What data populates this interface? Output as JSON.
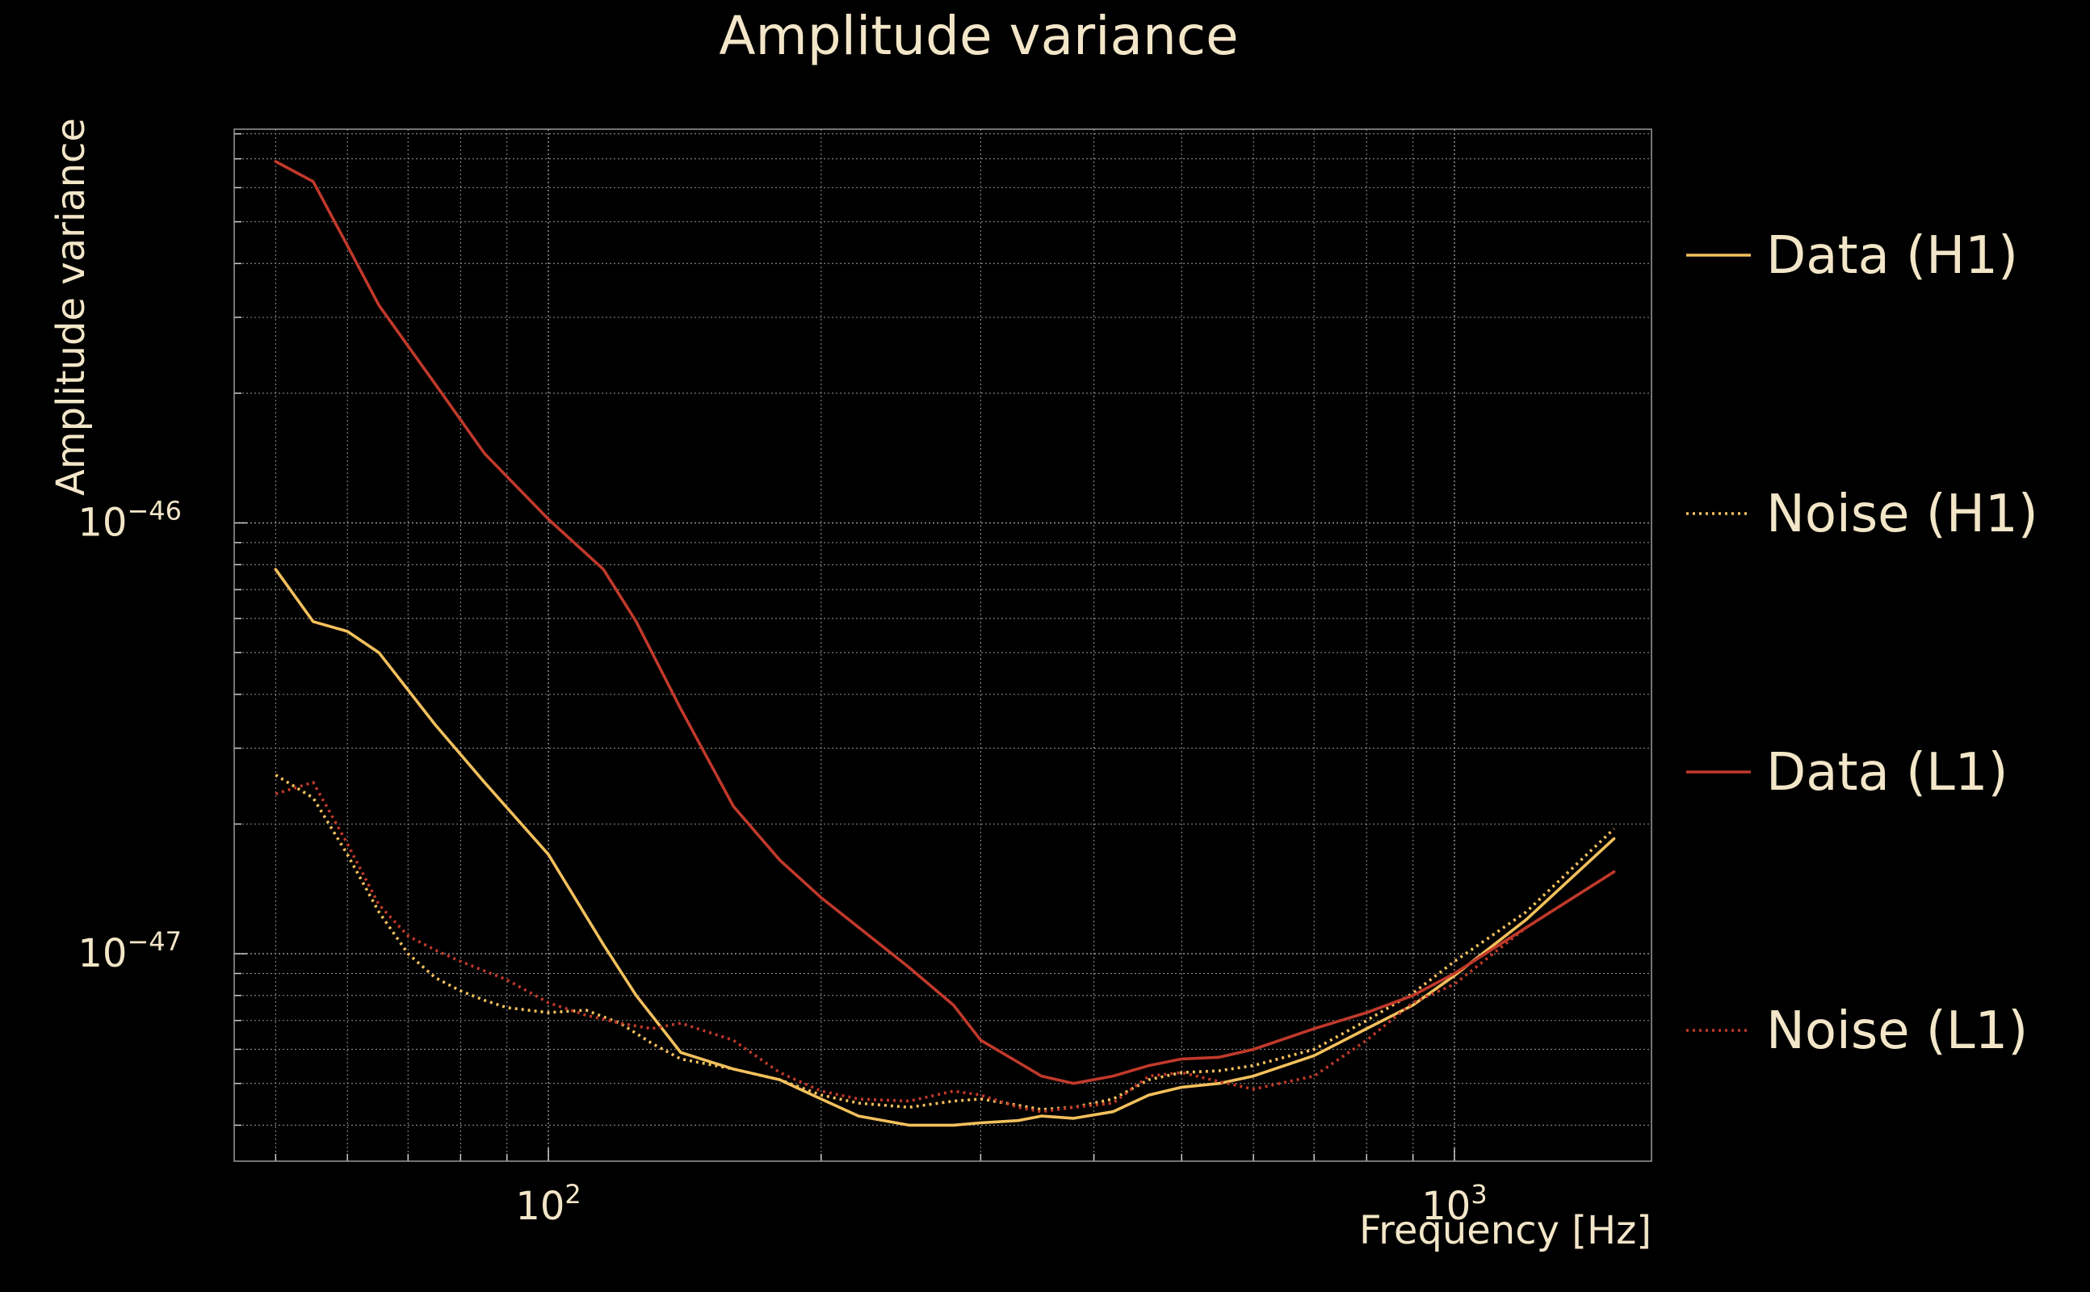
{
  "chart_data": {
    "type": "line",
    "title": "Amplitude variance",
    "xlabel": "Frequency [Hz]",
    "ylabel": "Amplitude variance",
    "x_scale": "log",
    "y_scale": "log",
    "xlim": [
      45,
      1650
    ],
    "ylim": [
      3.3e-48,
      8.2e-46
    ],
    "x_ticks": [
      {
        "value": 100,
        "base": "10",
        "exp": "2"
      },
      {
        "value": 1000,
        "base": "10",
        "exp": "3"
      }
    ],
    "y_ticks": [
      {
        "value": 1e-46,
        "base": "10",
        "exp": "−46"
      },
      {
        "value": 1e-47,
        "base": "10",
        "exp": "−47"
      }
    ],
    "grid": true,
    "legend_position": "right",
    "colors": {
      "background": "#000000",
      "text": "#f3e6c8",
      "grid": "#8a8a8a",
      "h1": "#f2c05c",
      "l1": "#c0392b"
    },
    "series": [
      {
        "name": "Data (H1)",
        "color": "#f2c05c",
        "dash": "solid",
        "x": [
          50,
          55,
          60,
          65,
          75,
          85,
          100,
          115,
          125,
          140,
          160,
          180,
          200,
          220,
          250,
          280,
          300,
          330,
          350,
          380,
          420,
          460,
          500,
          550,
          600,
          700,
          800,
          900,
          1000,
          1200,
          1500
        ],
        "y": [
          7.8e-47,
          5.9e-47,
          5.6e-47,
          5e-47,
          3.4e-47,
          2.5e-47,
          1.7e-47,
          1.05e-47,
          8e-48,
          5.9e-48,
          5.4e-48,
          5.1e-48,
          4.6e-48,
          4.2e-48,
          4e-48,
          4e-48,
          4.05e-48,
          4.1e-48,
          4.2e-48,
          4.15e-48,
          4.3e-48,
          4.7e-48,
          4.9e-48,
          5e-48,
          5.2e-48,
          5.8e-48,
          6.7e-48,
          7.6e-48,
          8.9e-48,
          1.2e-47,
          1.85e-47
        ]
      },
      {
        "name": "Noise (H1)",
        "color": "#f2c05c",
        "dash": "dotted",
        "x": [
          50,
          55,
          60,
          65,
          70,
          75,
          80,
          85,
          90,
          100,
          110,
          120,
          130,
          140,
          160,
          180,
          200,
          220,
          250,
          280,
          300,
          330,
          350,
          380,
          420,
          460,
          500,
          550,
          600,
          700,
          800,
          900,
          1000,
          1200,
          1500
        ],
        "y": [
          2.6e-47,
          2.3e-47,
          1.7e-47,
          1.25e-47,
          1e-47,
          8.8e-48,
          8.2e-48,
          7.8e-48,
          7.5e-48,
          7.3e-48,
          7.4e-48,
          6.9e-48,
          6.2e-48,
          5.7e-48,
          5.4e-48,
          5.1e-48,
          4.7e-48,
          4.5e-48,
          4.4e-48,
          4.55e-48,
          4.6e-48,
          4.45e-48,
          4.35e-48,
          4.4e-48,
          4.6e-48,
          5.1e-48,
          5.3e-48,
          5.35e-48,
          5.5e-48,
          6e-48,
          7e-48,
          8.1e-48,
          9.6e-48,
          1.25e-47,
          1.95e-47
        ]
      },
      {
        "name": "Data (L1)",
        "color": "#c0392b",
        "dash": "solid",
        "x": [
          50,
          55,
          60,
          65,
          75,
          85,
          100,
          115,
          125,
          140,
          160,
          180,
          200,
          250,
          280,
          300,
          330,
          350,
          380,
          420,
          460,
          500,
          550,
          600,
          700,
          800,
          900,
          1000,
          1200,
          1500
        ],
        "y": [
          6.9e-46,
          6.2e-46,
          4.4e-46,
          3.2e-46,
          2.1e-46,
          1.45e-46,
          1.02e-46,
          7.8e-47,
          5.9e-47,
          3.7e-47,
          2.2e-47,
          1.65e-47,
          1.35e-47,
          9.3e-48,
          7.6e-48,
          6.3e-48,
          5.6e-48,
          5.2e-48,
          5e-48,
          5.2e-48,
          5.5e-48,
          5.7e-48,
          5.75e-48,
          6e-48,
          6.7e-48,
          7.3e-48,
          8e-48,
          9e-48,
          1.15e-47,
          1.55e-47
        ]
      },
      {
        "name": "Noise (L1)",
        "color": "#c0392b",
        "dash": "dotted",
        "x": [
          50,
          55,
          60,
          65,
          70,
          75,
          80,
          90,
          100,
          110,
          120,
          130,
          140,
          160,
          180,
          200,
          220,
          250,
          280,
          300,
          330,
          350,
          380,
          420,
          460,
          500,
          550,
          600,
          700,
          800,
          900,
          1000,
          1200,
          1500
        ],
        "y": [
          2.35e-47,
          2.5e-47,
          1.8e-47,
          1.3e-47,
          1.1e-47,
          1.02e-47,
          9.6e-48,
          8.7e-48,
          7.7e-48,
          7.2e-48,
          6.9e-48,
          6.7e-48,
          6.9e-48,
          6.3e-48,
          5.3e-48,
          4.8e-48,
          4.6e-48,
          4.55e-48,
          4.8e-48,
          4.7e-48,
          4.4e-48,
          4.3e-48,
          4.4e-48,
          4.5e-48,
          5.2e-48,
          5.3e-48,
          5.05e-48,
          4.85e-48,
          5.2e-48,
          6.3e-48,
          7.7e-48,
          8.5e-48,
          1.15e-47,
          1.55e-47
        ]
      }
    ]
  }
}
